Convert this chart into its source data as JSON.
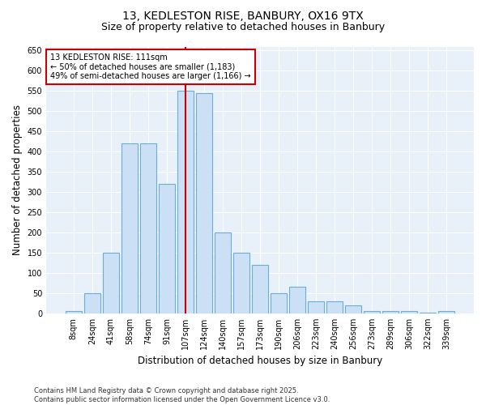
{
  "title1": "13, KEDLESTON RISE, BANBURY, OX16 9TX",
  "title2": "Size of property relative to detached houses in Banbury",
  "xlabel": "Distribution of detached houses by size in Banbury",
  "ylabel": "Number of detached properties",
  "categories": [
    "8sqm",
    "24sqm",
    "41sqm",
    "58sqm",
    "74sqm",
    "91sqm",
    "107sqm",
    "124sqm",
    "140sqm",
    "157sqm",
    "173sqm",
    "190sqm",
    "206sqm",
    "223sqm",
    "240sqm",
    "256sqm",
    "273sqm",
    "289sqm",
    "306sqm",
    "322sqm",
    "339sqm"
  ],
  "values": [
    5,
    50,
    150,
    420,
    420,
    320,
    550,
    545,
    200,
    150,
    120,
    50,
    65,
    30,
    30,
    20,
    5,
    5,
    5,
    2,
    5
  ],
  "bar_color": "#cce0f5",
  "bar_edge_color": "#6aaed6",
  "bar_width": 0.85,
  "vline_x_index": 6,
  "vline_color": "#cc0000",
  "annotation_line1": "13 KEDLESTON RISE: 111sqm",
  "annotation_line2": "← 50% of detached houses are smaller (1,183)",
  "annotation_line3": "49% of semi-detached houses are larger (1,166) →",
  "ylim": [
    0,
    660
  ],
  "yticks": [
    0,
    50,
    100,
    150,
    200,
    250,
    300,
    350,
    400,
    450,
    500,
    550,
    600,
    650
  ],
  "background_color": "#e8f0fa",
  "grid_color": "#ffffff",
  "footer_text": "Contains HM Land Registry data © Crown copyright and database right 2025.\nContains public sector information licensed under the Open Government Licence v3.0.",
  "title_fontsize": 10,
  "subtitle_fontsize": 9,
  "axis_label_fontsize": 8.5,
  "tick_fontsize": 7,
  "annotation_fontsize": 7,
  "footer_fontsize": 6
}
